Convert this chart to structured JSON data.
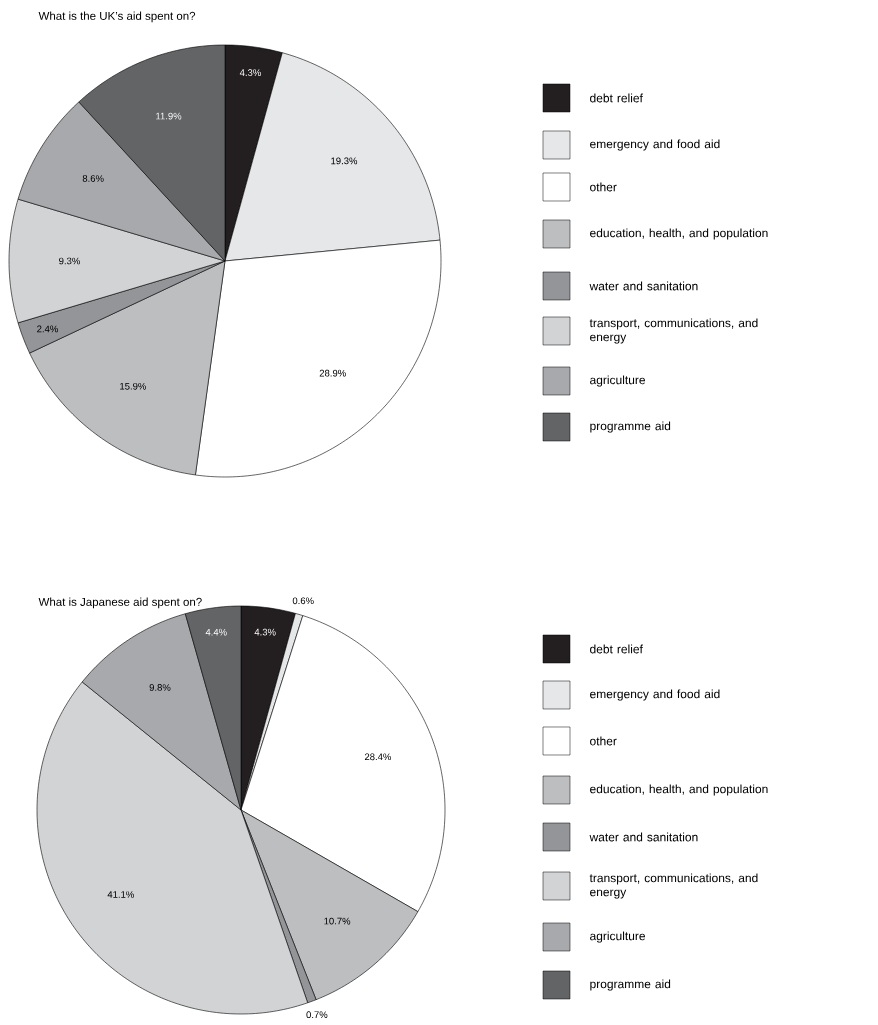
{
  "chart_data": [
    {
      "type": "pie",
      "title": "What is the UK’s aid spent on?",
      "categories": [
        "debt relief",
        "emergency and food aid",
        "other",
        "education, health, and population",
        "water and sanitation",
        "transport, communications, and energy",
        "agriculture",
        "programme aid"
      ],
      "values": [
        4.3,
        19.3,
        28.9,
        15.9,
        2.4,
        9.3,
        8.6,
        11.9
      ],
      "colors": [
        "#231f20",
        "#e6e7e8",
        "#ffffff",
        "#bcbec0",
        "#939598",
        "#d1d3d4",
        "#a7a9ac",
        "#636466"
      ],
      "value_labels": [
        "4.3%",
        "19.3%",
        "28.9%",
        "15.9%",
        "2.4%",
        "9.3%",
        "8.6%",
        "11.9%"
      ],
      "legend": "right"
    },
    {
      "type": "pie",
      "title": "What is Japanese aid spent on?",
      "categories": [
        "debt relief",
        "emergency and food aid",
        "other",
        "education, health, and population",
        "water and sanitation",
        "transport, communications, and energy",
        "agriculture",
        "programme aid"
      ],
      "values": [
        4.3,
        0.6,
        28.4,
        10.7,
        0.7,
        41.1,
        9.8,
        4.4
      ],
      "colors": [
        "#231f20",
        "#e6e7e8",
        "#ffffff",
        "#bcbec0",
        "#939598",
        "#d1d3d4",
        "#a7a9ac",
        "#636466"
      ],
      "value_labels": [
        "4.3%",
        "0.6%",
        "28.4%",
        "10.7%",
        "0.7%",
        "41.1%",
        "9.8%",
        "4.4%"
      ],
      "legend": "right"
    }
  ]
}
